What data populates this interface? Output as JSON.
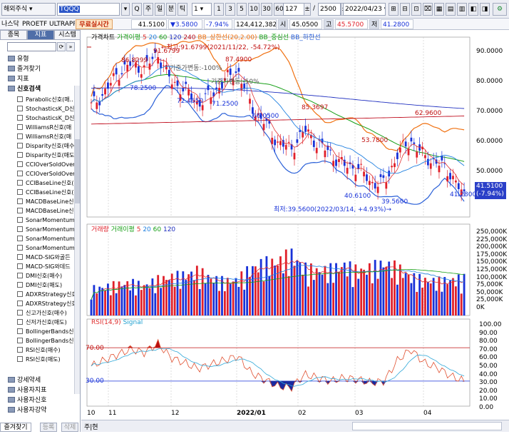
{
  "toolbar": {
    "market": "해외주식",
    "code": "TQQQ",
    "b_search": "Q",
    "b_ju": "주",
    "b_il": "일",
    "b_bun": "분",
    "b_tick": "틱",
    "period_value": "1",
    "intervals": [
      "1",
      "3",
      "5",
      "10",
      "30",
      "60"
    ],
    "count_a": "127",
    "slash": "/",
    "count_b": "2500",
    "date": "2022/04/23"
  },
  "quote": {
    "exchange": "나스닥",
    "name": "PROETF ULTRAPRO",
    "realtime_badge": "무료실시간",
    "price": "41.5100",
    "change": "▼3.5800",
    "change_pct": "-7.94%",
    "volume": "124,412,382",
    "open_label": "시",
    "open": "45.0500",
    "high_label": "고",
    "high": "45.5700",
    "low_label": "저",
    "low": "41.2800"
  },
  "left_panel": {
    "tabs": [
      "종목",
      "지표",
      "시스템"
    ],
    "sections_top": [
      "유형",
      "즐겨찾기",
      "지표",
      "신호검색"
    ],
    "signals": [
      "Parabolic신호(매..",
      "StochasticsK_D신",
      "StochasticsK_D신",
      "WilliamsR신호(매",
      "WilliamsR신호(매",
      "Disparity신호(매수",
      "Disparity신호(매도",
      "CCIOverSoldOver",
      "CCIOverSoldOver",
      "CCIBaseLine신호(",
      "CCIBaseLine신호(",
      "MACDBaseLine신",
      "MACDBaseLine신",
      "SonarMomentum",
      "SonarMomentum",
      "SonarMomentum",
      "SonarMomentum",
      "MACD-SIG와골든",
      "MACD-SIG와데드",
      "DMI신호(매수)",
      "DMI신호(매도)",
      "ADXRStrategy신호",
      "ADXRStrategy신호",
      "신고가신호(매수)",
      "신저가신호(매도)",
      "BollingerBands신",
      "BollingerBands신",
      "RSI신호(매수)",
      "RSI신호(매도)"
    ],
    "sections_bottom": [
      "강세약세",
      "사용자지표",
      "사용자신호",
      "사용자강약"
    ],
    "bottom_tabs": [
      "즐겨찾기",
      "등록",
      "삭제"
    ]
  },
  "legend_price": {
    "title": "가격차트",
    "ma_label": "가격이평",
    "ma": [
      "5",
      "20",
      "60",
      "120",
      "240"
    ],
    "bb_up": "BB_상한선(20,2.00)",
    "bb_mid": "BB_중심선",
    "bb_low": "BB_하한선"
  },
  "legend_vol": {
    "title": "거래량",
    "ma_label": "거래이평",
    "ma": [
      "5",
      "20",
      "60",
      "120"
    ]
  },
  "legend_rsi": {
    "title": "RSI(14,9)",
    "signal": "Signal"
  },
  "annotations": {
    "high_note": "←최고:91.6799(2021/11/22, -54.72%)",
    "low_note": "최저:39.5600(2022/03/14, +4.93%)→",
    "labels": [
      "86.8299",
      "91.6799",
      "78.2500",
      "72.4650",
      "71.2500",
      "87.4900",
      "66.0500",
      "85.3697",
      "53.7800",
      "62.9600",
      "40.6100",
      "39.5600",
      "41.2800"
    ],
    "ghost1": "기준가변동:-100%",
    "ghost2": "기준가변동:-50%",
    "rsi_70": "70.00",
    "rsi_30": "30.00"
  },
  "price_tag": {
    "value": "41.5100",
    "pct": "(-7.94%)"
  },
  "axes": {
    "price_y": [
      "90.0000",
      "80.0000",
      "70.0000",
      "60.0000",
      "50.0000"
    ],
    "vol_y": [
      "250,000K",
      "225,000K",
      "200,000K",
      "175,000K",
      "150,000K",
      "125,000K",
      "100,000K",
      "75,000K",
      "50,000K",
      "25,000K",
      "0K"
    ],
    "rsi_y": [
      "100.00",
      "90.00",
      "80.00",
      "70.00",
      "60.00",
      "50.00",
      "40.00",
      "30.00",
      "20.00",
      "10.00",
      "0.00"
    ],
    "x": [
      "10",
      "11",
      "12",
      "2022/01",
      "02",
      "03",
      "04"
    ]
  },
  "colors": {
    "up": "#e0202a",
    "down": "#1832d8",
    "ma5": "#e03030",
    "ma20": "#2080e0",
    "ma60": "#18a018",
    "ma120": "#2030c0",
    "ma240": "#c01020",
    "bb_up": "#f07010",
    "bb_mid": "#18a018",
    "bb_low": "#2a60d8"
  },
  "chart_data": {
    "type": "candlestick",
    "x": [
      "2021-10-11",
      "2021-10-18",
      "2021-10-25",
      "2021-11-01",
      "2021-11-08",
      "2021-11-15",
      "2021-11-22",
      "2021-11-29",
      "2021-12-06",
      "2021-12-13",
      "2021-12-20",
      "2021-12-27",
      "2022-01-03",
      "2022-01-10",
      "2022-01-18",
      "2022-01-24",
      "2022-01-31",
      "2022-02-07",
      "2022-02-14",
      "2022-02-22",
      "2022-02-28",
      "2022-03-07",
      "2022-03-14",
      "2022-03-21",
      "2022-03-28",
      "2022-04-04",
      "2022-04-11",
      "2022-04-18",
      "2022-04-22"
    ],
    "series": [
      {
        "name": "close",
        "values": [
          72.0,
          76.5,
          83.0,
          86.0,
          84.5,
          89.5,
          80.0,
          77.5,
          73.0,
          75.5,
          80.5,
          84.0,
          72.0,
          66.5,
          60.0,
          57.5,
          64.0,
          59.5,
          56.0,
          52.0,
          51.5,
          46.5,
          46.0,
          56.0,
          60.5,
          55.0,
          53.0,
          49.5,
          41.51
        ]
      },
      {
        "name": "volume_k",
        "values": [
          90000,
          95000,
          105000,
          110000,
          100000,
          120000,
          130000,
          135000,
          150000,
          125000,
          115000,
          120000,
          160000,
          175000,
          180000,
          205000,
          160000,
          150000,
          155000,
          170000,
          150000,
          160000,
          175000,
          160000,
          130000,
          120000,
          115000,
          120000,
          124412
        ]
      },
      {
        "name": "rsi",
        "values": [
          48,
          55,
          62,
          68,
          64,
          75,
          58,
          52,
          45,
          50,
          55,
          60,
          40,
          32,
          24,
          22,
          38,
          34,
          30,
          34,
          32,
          28,
          30,
          55,
          68,
          52,
          46,
          36,
          30
        ]
      }
    ],
    "ylim_price": [
      35,
      95
    ],
    "ylim_volume": [
      0,
      275000
    ],
    "ylim_rsi": [
      0,
      100
    ],
    "high": {
      "value": 91.6799,
      "date": "2021-11-22"
    },
    "low": {
      "value": 39.56,
      "date": "2022-03-14"
    }
  }
}
